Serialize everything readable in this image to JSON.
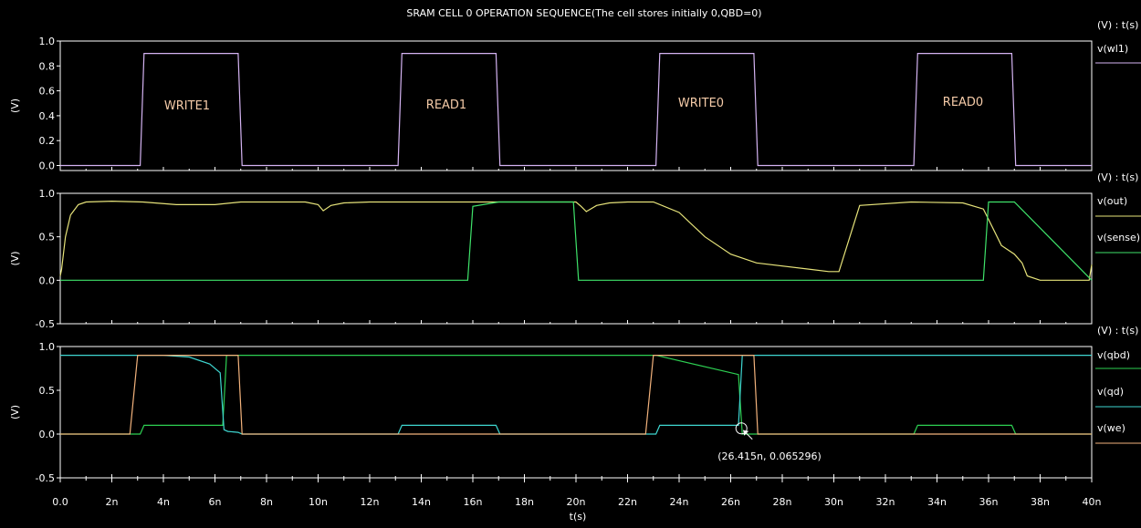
{
  "window": {
    "title": "SRAM CELL 0 OPERATION SEQUENCE(The cell stores initially 0,QBD=0)"
  },
  "chart_data": [
    {
      "type": "line",
      "ylabel": "(V)",
      "axis_unit": "(V) : t(s)",
      "xlim": [
        0,
        40
      ],
      "ylim": [
        -0.02,
        1.0
      ],
      "ytick_values": [
        0.0,
        0.2,
        0.4,
        0.6,
        0.8,
        1.0
      ],
      "ytick_labels": [
        "0.0",
        "0.2",
        "0.4",
        "0.6",
        "0.8",
        "1.0"
      ],
      "annotations": [
        {
          "text": "WRITE1",
          "x": 5.0,
          "y": 0.47
        },
        {
          "text": "READ1",
          "x": 15.0,
          "y": 0.47
        },
        {
          "text": "WRITE0",
          "x": 25.0,
          "y": 0.49
        },
        {
          "text": "READ0",
          "x": 35.0,
          "y": 0.49
        }
      ],
      "series": [
        {
          "name": "v(wl1)",
          "color": "#d4b3f2",
          "x": [
            0,
            3.1,
            3.25,
            6.9,
            7.05,
            13.1,
            13.25,
            16.9,
            17.05,
            23.1,
            23.25,
            26.9,
            27.05,
            33.1,
            33.25,
            36.9,
            37.05,
            40
          ],
          "y": [
            0,
            0,
            0.9,
            0.9,
            0,
            0,
            0.9,
            0.9,
            0,
            0,
            0.9,
            0.9,
            0,
            0,
            0.9,
            0.9,
            0,
            0
          ]
        }
      ]
    },
    {
      "type": "line",
      "ylabel": "(V)",
      "axis_unit": "(V) : t(s)",
      "xlim": [
        0,
        40
      ],
      "ylim": [
        -0.5,
        1.0
      ],
      "ytick_values": [
        -0.5,
        0.0,
        0.5,
        1.0
      ],
      "ytick_labels": [
        "-0.5",
        "0.0",
        "0.5",
        "1.0"
      ],
      "series": [
        {
          "name": "v(out)",
          "color": "#e6e37a",
          "x": [
            0,
            0.05,
            0.2,
            0.4,
            0.7,
            1.0,
            2.0,
            3.2,
            4.5,
            6.0,
            7.0,
            9.5,
            10.0,
            10.2,
            10.5,
            11.0,
            12.0,
            15.0,
            16.0,
            20.0,
            20.2,
            20.4,
            20.8,
            21.3,
            22.0,
            23.0,
            24.0,
            25.0,
            26.0,
            27.0,
            29.8,
            29.9,
            30.2,
            31.0,
            33.0,
            35.0,
            35.8,
            36.0,
            36.5,
            37.0,
            37.3,
            37.5,
            38.0,
            39.9,
            40.0
          ],
          "y": [
            0.05,
            0.12,
            0.5,
            0.75,
            0.87,
            0.9,
            0.91,
            0.9,
            0.87,
            0.87,
            0.9,
            0.9,
            0.87,
            0.8,
            0.86,
            0.89,
            0.9,
            0.9,
            0.9,
            0.9,
            0.85,
            0.79,
            0.86,
            0.89,
            0.9,
            0.9,
            0.78,
            0.5,
            0.3,
            0.2,
            0.1,
            0.1,
            0.1,
            0.86,
            0.9,
            0.89,
            0.82,
            0.7,
            0.4,
            0.3,
            0.2,
            0.05,
            0.0,
            0.0,
            0.18
          ]
        },
        {
          "name": "v(sense)",
          "color": "#3fe26a",
          "x": [
            0,
            15.8,
            16.0,
            17.0,
            19.9,
            20.1,
            35.8,
            36.0,
            37.0,
            40.0
          ],
          "y": [
            0,
            0,
            0.85,
            0.9,
            0.9,
            0,
            0,
            0.9,
            0.9,
            0
          ]
        }
      ]
    },
    {
      "type": "line",
      "ylabel": "(V)",
      "axis_unit": "(V) : t(s)",
      "xlim": [
        0,
        40
      ],
      "ylim": [
        -0.5,
        1.0
      ],
      "ytick_values": [
        -0.5,
        0.0,
        0.5,
        1.0
      ],
      "ytick_labels": [
        "-0.5",
        "0.0",
        "0.5",
        "1.0"
      ],
      "annotations": [
        {
          "text": "(26.415n, 0.065296)",
          "x": 26.415,
          "y": 0.065296
        }
      ],
      "series": [
        {
          "name": "v(qbd)",
          "color": "#2dcf52",
          "x": [
            0,
            3.1,
            3.25,
            6.3,
            6.45,
            6.9,
            7.05,
            13.1,
            13.25,
            16.9,
            17.05,
            23.1,
            23.25,
            26.3,
            26.45,
            26.9,
            27.05,
            33.1,
            33.25,
            36.9,
            37.05,
            40
          ],
          "y": [
            0,
            0,
            0.1,
            0.1,
            0.9,
            0.9,
            0.9,
            0.9,
            0.9,
            0.9,
            0.9,
            0.9,
            0.89,
            0.68,
            0.0,
            0.0,
            0.0,
            0.0,
            0.1,
            0.1,
            0.0,
            0.0
          ]
        },
        {
          "name": "v(qd)",
          "color": "#3ed6d0",
          "x": [
            0,
            4.0,
            5.0,
            5.8,
            6.2,
            6.35,
            6.5,
            6.9,
            7.05,
            13.1,
            13.25,
            16.9,
            17.05,
            23.1,
            23.25,
            26.3,
            26.45,
            40
          ],
          "y": [
            0.9,
            0.9,
            0.88,
            0.8,
            0.7,
            0.05,
            0.03,
            0.02,
            0.0,
            0.0,
            0.1,
            0.1,
            0.0,
            0.0,
            0.1,
            0.1,
            0.9,
            0.9
          ]
        },
        {
          "name": "v(we)",
          "color": "#f2b27c",
          "x": [
            0,
            2.7,
            3.0,
            6.9,
            7.05,
            22.7,
            23.0,
            26.9,
            27.05,
            40
          ],
          "y": [
            0,
            0,
            0.9,
            0.9,
            0,
            0,
            0.9,
            0.9,
            0,
            0
          ]
        }
      ]
    }
  ],
  "x_axis": {
    "label": "t(s)",
    "ticks": [
      "0.0",
      "2n",
      "4n",
      "6n",
      "8n",
      "10n",
      "12n",
      "14n",
      "16n",
      "18n",
      "20n",
      "22n",
      "24n",
      "26n",
      "28n",
      "30n",
      "32n",
      "34n",
      "36n",
      "38n",
      "40n"
    ]
  }
}
